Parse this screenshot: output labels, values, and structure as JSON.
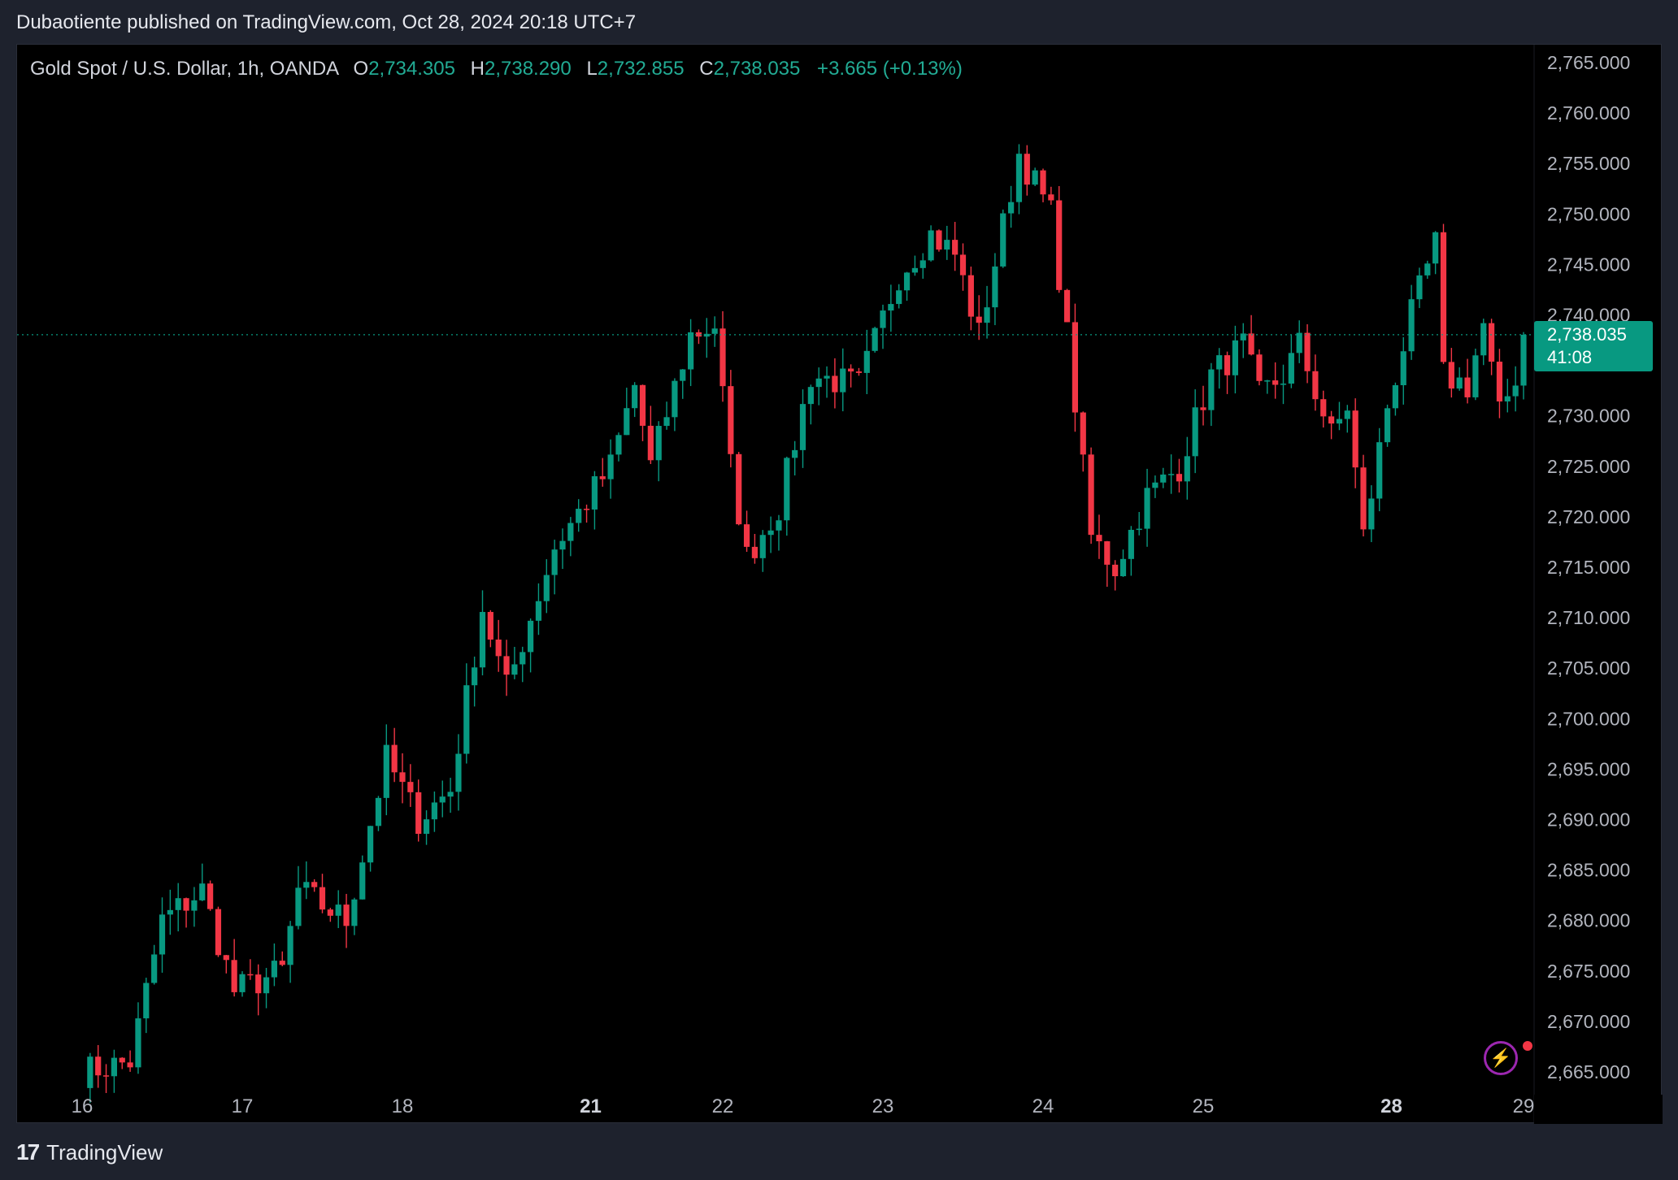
{
  "header": {
    "published_by": "Dubaotiente published on TradingView.com, Oct 28, 2024 20:18 UTC+7"
  },
  "legend": {
    "symbol": "Gold Spot / U.S. Dollar, 1h, OANDA",
    "o_label": "O",
    "o_value": "2,734.305",
    "h_label": "H",
    "h_value": "2,738.290",
    "l_label": "L",
    "l_value": "2,732.855",
    "c_label": "C",
    "c_value": "2,738.035",
    "change": "+3.665 (+0.13%)"
  },
  "price_label": {
    "price": "2,738.035",
    "countdown": "41:08"
  },
  "footer": {
    "brand": "TradingView",
    "logo_icon": "tradingview-logo-icon"
  },
  "colors": {
    "up": "#089981",
    "down": "#f23645",
    "background": "#000000",
    "accent": "#089981"
  },
  "chart_data": {
    "type": "candlestick",
    "title": "Gold Spot / U.S. Dollar, 1h, OANDA",
    "ylim": [
      2665,
      2765
    ],
    "y_ticks": [
      "2,765.000",
      "2,760.000",
      "2,755.000",
      "2,750.000",
      "2,745.000",
      "2,740.000",
      "2,730.000",
      "2,725.000",
      "2,720.000",
      "2,715.000",
      "2,710.000",
      "2,705.000",
      "2,700.000",
      "2,695.000",
      "2,690.000",
      "2,685.000",
      "2,680.000",
      "2,675.000",
      "2,670.000",
      "2,665.000"
    ],
    "y_tick_values": [
      2765,
      2760,
      2755,
      2750,
      2745,
      2740,
      2730,
      2725,
      2720,
      2715,
      2710,
      2705,
      2700,
      2695,
      2690,
      2685,
      2680,
      2675,
      2670,
      2665
    ],
    "x_ticks": [
      {
        "label": "16",
        "x": 0
      },
      {
        "label": "17",
        "x": 20
      },
      {
        "label": "18",
        "x": 40
      },
      {
        "label": "21",
        "x": 63.5,
        "bold": true
      },
      {
        "label": "22",
        "x": 80
      },
      {
        "label": "23",
        "x": 100
      },
      {
        "label": "24",
        "x": 120
      },
      {
        "label": "25",
        "x": 140
      },
      {
        "label": "28",
        "x": 163.5,
        "bold": true
      },
      {
        "label": "29",
        "x": 180
      }
    ],
    "current_price": 2738.035,
    "anchors": [
      {
        "x": 0,
        "p": 2665
      },
      {
        "x": 6,
        "p": 2666
      },
      {
        "x": 10,
        "p": 2680
      },
      {
        "x": 15,
        "p": 2683
      },
      {
        "x": 19,
        "p": 2673
      },
      {
        "x": 25,
        "p": 2675
      },
      {
        "x": 27,
        "p": 2683
      },
      {
        "x": 33,
        "p": 2680
      },
      {
        "x": 38,
        "p": 2696
      },
      {
        "x": 42,
        "p": 2690
      },
      {
        "x": 46,
        "p": 2693
      },
      {
        "x": 50,
        "p": 2711
      },
      {
        "x": 53,
        "p": 2703
      },
      {
        "x": 59,
        "p": 2717
      },
      {
        "x": 66,
        "p": 2725
      },
      {
        "x": 69,
        "p": 2733
      },
      {
        "x": 71,
        "p": 2725
      },
      {
        "x": 76,
        "p": 2738
      },
      {
        "x": 79,
        "p": 2739
      },
      {
        "x": 81,
        "p": 2725
      },
      {
        "x": 83,
        "p": 2716
      },
      {
        "x": 87,
        "p": 2721
      },
      {
        "x": 91,
        "p": 2734
      },
      {
        "x": 97,
        "p": 2733
      },
      {
        "x": 102,
        "p": 2744
      },
      {
        "x": 106,
        "p": 2748
      },
      {
        "x": 109,
        "p": 2746
      },
      {
        "x": 112,
        "p": 2738
      },
      {
        "x": 117,
        "p": 2756
      },
      {
        "x": 121,
        "p": 2750
      },
      {
        "x": 123,
        "p": 2738
      },
      {
        "x": 126,
        "p": 2718
      },
      {
        "x": 129,
        "p": 2715
      },
      {
        "x": 133,
        "p": 2722
      },
      {
        "x": 137,
        "p": 2725
      },
      {
        "x": 141,
        "p": 2734
      },
      {
        "x": 145,
        "p": 2737
      },
      {
        "x": 147,
        "p": 2732
      },
      {
        "x": 150,
        "p": 2734
      },
      {
        "x": 152,
        "p": 2737
      },
      {
        "x": 156,
        "p": 2728
      },
      {
        "x": 158,
        "p": 2731
      },
      {
        "x": 160,
        "p": 2718
      },
      {
        "x": 163,
        "p": 2731
      },
      {
        "x": 166,
        "p": 2740
      },
      {
        "x": 169,
        "p": 2747
      },
      {
        "x": 170,
        "p": 2734
      },
      {
        "x": 173,
        "p": 2733
      },
      {
        "x": 175,
        "p": 2739
      },
      {
        "x": 177,
        "p": 2730
      },
      {
        "x": 179,
        "p": 2734
      },
      {
        "x": 180,
        "p": 2738
      }
    ]
  }
}
